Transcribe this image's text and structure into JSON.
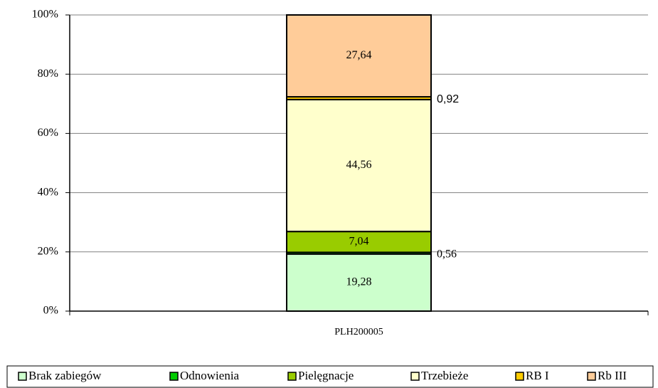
{
  "chart_data": {
    "type": "stacked_bar",
    "categories": [
      "PLH200005"
    ],
    "series": [
      {
        "name": "Brak zabiegów",
        "color": "#ccffcc",
        "values": [
          19.28
        ],
        "value_labels": [
          "19,28"
        ]
      },
      {
        "name": "Odnowienia",
        "color": "#00cc00",
        "values": [
          0.56
        ],
        "value_labels": [
          "0,56"
        ]
      },
      {
        "name": "Pielęgnacje",
        "color": "#99cc00",
        "values": [
          7.04
        ],
        "value_labels": [
          "7,04"
        ]
      },
      {
        "name": "Trzebieże",
        "color": "#ffffcc",
        "values": [
          44.56
        ],
        "value_labels": [
          "44,56"
        ]
      },
      {
        "name": "RB I",
        "color": "#ffcc00",
        "values": [
          0.92
        ],
        "value_labels": [
          "0,92"
        ]
      },
      {
        "name": "Rb III",
        "color": "#ffcc99",
        "values": [
          27.64
        ],
        "value_labels": [
          "27,64"
        ]
      }
    ],
    "ylim": [
      0,
      100
    ],
    "yticks": [
      {
        "value": 0,
        "label": "0%"
      },
      {
        "value": 20,
        "label": "20%"
      },
      {
        "value": 40,
        "label": "40%"
      },
      {
        "value": 60,
        "label": "60%"
      },
      {
        "value": 80,
        "label": "80%"
      },
      {
        "value": 100,
        "label": "100%"
      }
    ],
    "grid": true,
    "legend": "bottom"
  }
}
